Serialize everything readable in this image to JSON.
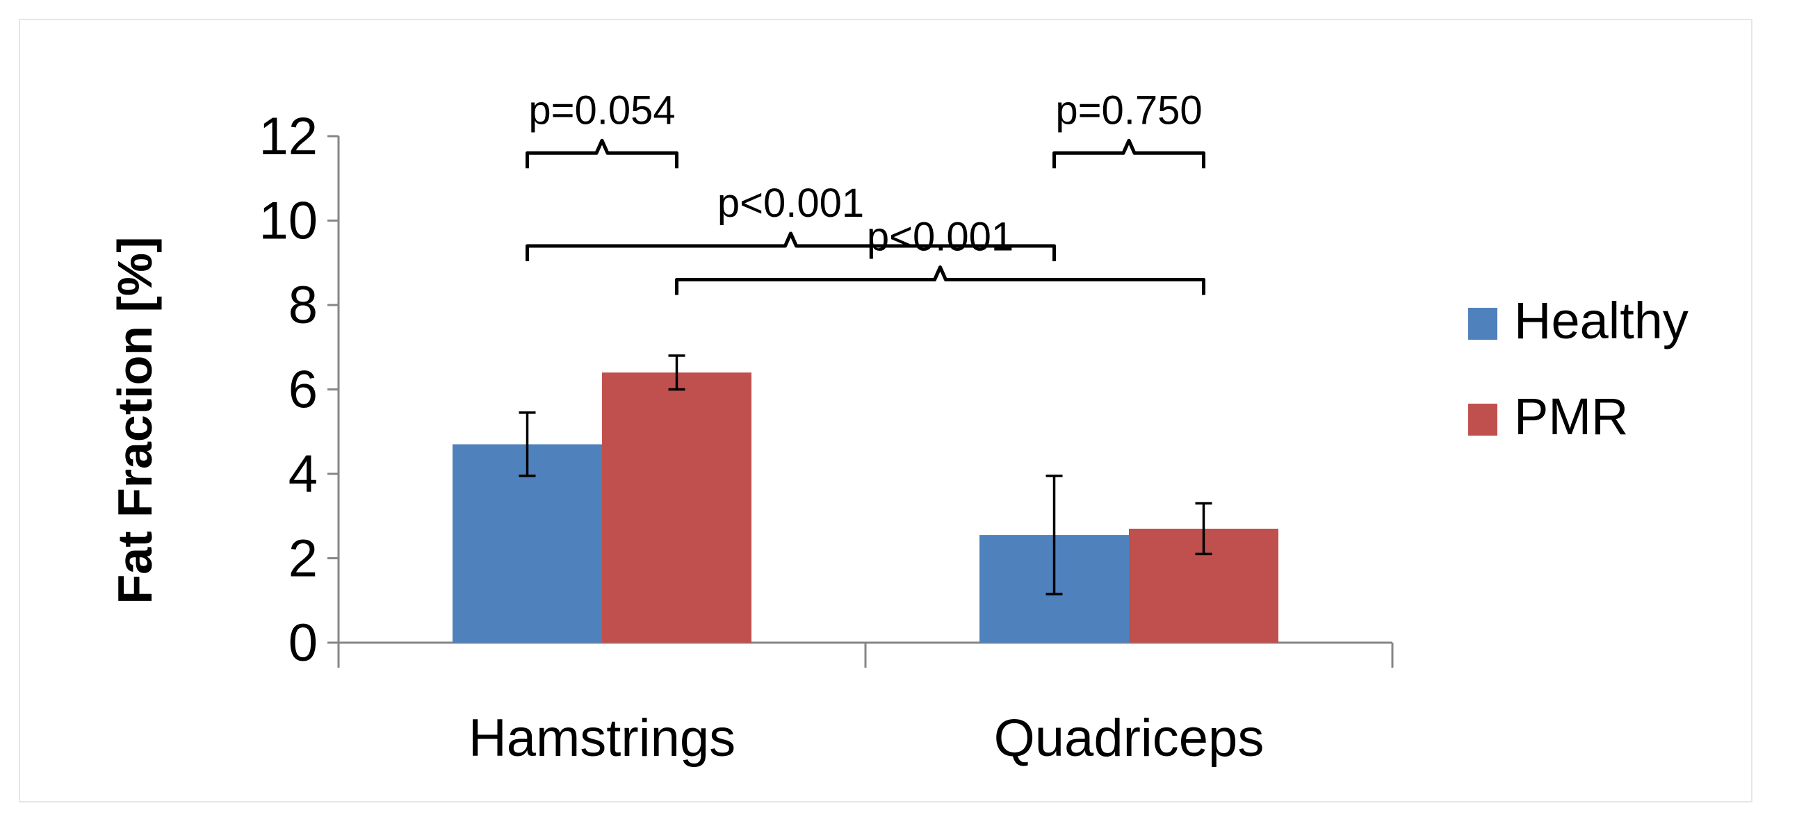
{
  "chart_data": {
    "type": "bar",
    "title": "",
    "xlabel": "",
    "ylabel": "Fat Fraction [%]",
    "ylim": [
      0,
      12
    ],
    "yticks": [
      0,
      2,
      4,
      6,
      8,
      10,
      12
    ],
    "grid": false,
    "legend_position": "right",
    "categories": [
      "Hamstrings",
      "Quadriceps"
    ],
    "series": [
      {
        "name": "Healthy",
        "color": "#4f81bd",
        "values": [
          4.7,
          2.55
        ],
        "error": [
          0.75,
          1.4
        ]
      },
      {
        "name": "PMR",
        "color": "#c0504d",
        "values": [
          6.4,
          2.7
        ],
        "error": [
          0.4,
          0.6
        ]
      }
    ],
    "annotations": [
      {
        "text": "p=0.054",
        "from": {
          "series": 0,
          "category": 0
        },
        "to": {
          "series": 1,
          "category": 0
        },
        "level": 11.6
      },
      {
        "text": "p<0.001",
        "from": {
          "series": 0,
          "category": 0
        },
        "to": {
          "series": 0,
          "category": 1
        },
        "level": 9.4
      },
      {
        "text": "p=0.750",
        "from": {
          "series": 0,
          "category": 1
        },
        "to": {
          "series": 1,
          "category": 1
        },
        "level": 11.6
      },
      {
        "text": "p<0.001",
        "from": {
          "series": 1,
          "category": 0
        },
        "to": {
          "series": 1,
          "category": 1
        },
        "level": 8.6
      }
    ]
  }
}
